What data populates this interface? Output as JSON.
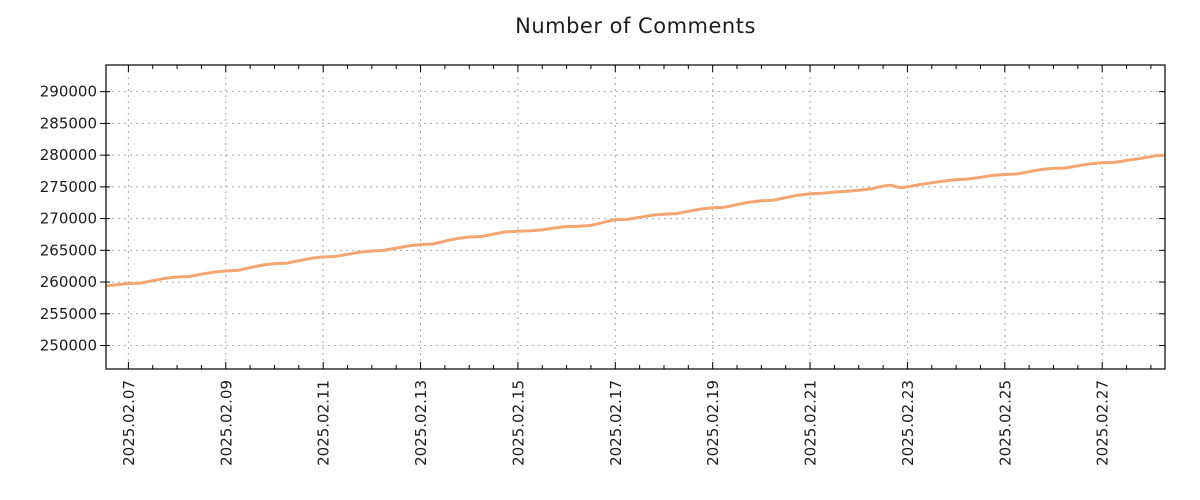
{
  "page": {
    "title": "Number of Comments"
  },
  "colors": {
    "line": "#f5a571",
    "grid": "#ababab",
    "border": "#000000",
    "text": "#1c1c1c",
    "background": "#ffffff"
  },
  "chart_data": {
    "type": "line",
    "title": "Number of Comments",
    "xlabel": "",
    "ylabel": "",
    "legend": "none",
    "grid": "dotted",
    "x_unit": "days since 2025-02-07 00:00",
    "xlim": [
      -0.46,
      21.29
    ],
    "ylim": [
      246300,
      294200
    ],
    "y_ticks": [
      250000,
      255000,
      260000,
      265000,
      270000,
      275000,
      280000,
      285000,
      290000
    ],
    "y_tick_labels": [
      "250000",
      "255000",
      "260000",
      "265000",
      "270000",
      "275000",
      "280000",
      "285000",
      "290000"
    ],
    "x_major_ticks": [
      0,
      2,
      4,
      6,
      8,
      10,
      12,
      14,
      16,
      18,
      20
    ],
    "x_tick_labels": [
      "2025.02.07",
      "2025.02.09",
      "2025.02.11",
      "2025.02.13",
      "2025.02.15",
      "2025.02.17",
      "2025.02.19",
      "2025.02.21",
      "2025.02.23",
      "2025.02.25",
      "2025.02.27"
    ],
    "x_minor_tick_step": 0.5,
    "series": [
      {
        "name": "number-of-comments",
        "color": "#f5a571",
        "points": [
          [
            -0.46,
            259400
          ],
          [
            -0.25,
            259580
          ],
          [
            0,
            259750
          ],
          [
            0.25,
            259830
          ],
          [
            0.5,
            260220
          ],
          [
            0.75,
            260590
          ],
          [
            1,
            260800
          ],
          [
            1.25,
            260880
          ],
          [
            1.5,
            261230
          ],
          [
            1.75,
            261560
          ],
          [
            2,
            261750
          ],
          [
            2.25,
            261840
          ],
          [
            2.5,
            262270
          ],
          [
            2.75,
            262670
          ],
          [
            3,
            262900
          ],
          [
            3.25,
            262980
          ],
          [
            3.5,
            263370
          ],
          [
            3.75,
            263740
          ],
          [
            4,
            263950
          ],
          [
            4.25,
            264030
          ],
          [
            4.5,
            264380
          ],
          [
            4.75,
            264710
          ],
          [
            5,
            264900
          ],
          [
            5.25,
            264980
          ],
          [
            5.5,
            265350
          ],
          [
            5.75,
            265700
          ],
          [
            6,
            265900
          ],
          [
            6.25,
            266000
          ],
          [
            6.5,
            266440
          ],
          [
            6.75,
            266860
          ],
          [
            7,
            267100
          ],
          [
            7.25,
            267180
          ],
          [
            7.5,
            267550
          ],
          [
            7.75,
            267900
          ],
          [
            8,
            268020
          ],
          [
            8.25,
            268090
          ],
          [
            8.5,
            268220
          ],
          [
            8.75,
            268520
          ],
          [
            9,
            268760
          ],
          [
            9.25,
            268800
          ],
          [
            9.5,
            268920
          ],
          [
            9.75,
            269400
          ],
          [
            10,
            269840
          ],
          [
            10.25,
            269870
          ],
          [
            10.5,
            270210
          ],
          [
            10.75,
            270520
          ],
          [
            11,
            270700
          ],
          [
            11.25,
            270780
          ],
          [
            11.5,
            271150
          ],
          [
            11.75,
            271500
          ],
          [
            12,
            271700
          ],
          [
            12.25,
            271790
          ],
          [
            12.5,
            272200
          ],
          [
            12.75,
            272580
          ],
          [
            13,
            272800
          ],
          [
            13.25,
            272890
          ],
          [
            13.5,
            273300
          ],
          [
            13.75,
            273680
          ],
          [
            14,
            273900
          ],
          [
            14.25,
            273980
          ],
          [
            14.5,
            274180
          ],
          [
            14.75,
            274320
          ],
          [
            15,
            274450
          ],
          [
            15.25,
            274680
          ],
          [
            15.5,
            275120
          ],
          [
            15.65,
            275260
          ],
          [
            15.85,
            274870
          ],
          [
            16,
            275000
          ],
          [
            16.25,
            275350
          ],
          [
            16.5,
            275650
          ],
          [
            16.75,
            275900
          ],
          [
            17,
            276150
          ],
          [
            17.25,
            276230
          ],
          [
            17.5,
            276500
          ],
          [
            17.75,
            276800
          ],
          [
            18,
            276950
          ],
          [
            18.25,
            277030
          ],
          [
            18.5,
            277380
          ],
          [
            18.75,
            277730
          ],
          [
            19,
            277900
          ],
          [
            19.25,
            277970
          ],
          [
            19.5,
            278310
          ],
          [
            19.75,
            278620
          ],
          [
            20,
            278800
          ],
          [
            20.25,
            278860
          ],
          [
            20.5,
            279160
          ],
          [
            20.75,
            279440
          ],
          [
            21,
            279750
          ],
          [
            21.1,
            279930
          ],
          [
            21.29,
            279970
          ]
        ]
      }
    ]
  }
}
